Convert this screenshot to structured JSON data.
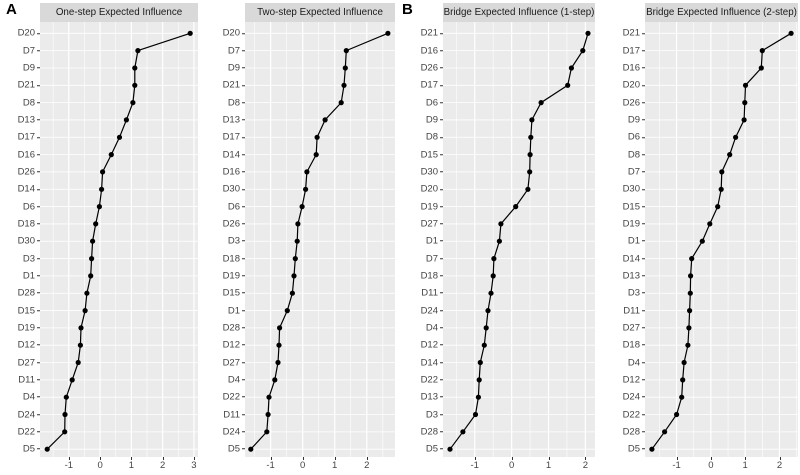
{
  "figure": {
    "panel_a_label": "A",
    "panel_b_label": "B"
  },
  "colors": {
    "panel_bg": "#EBEBEB",
    "strip_bg": "#D9D9D9",
    "grid": "#FFFFFF",
    "line": "#000000",
    "point": "#000000",
    "axis_text": "#444444"
  },
  "chart_data": [
    {
      "type": "line",
      "panel": "A",
      "title": "One-step Expected Influence",
      "xlabel": "",
      "ylabel": "",
      "legend": "none",
      "grid": "on",
      "orientation": "items listed top-to-bottom, sorted descending",
      "xlim": [
        -1.92,
        3.13
      ],
      "xticks": [
        -1,
        0,
        1,
        2,
        3
      ],
      "categories": [
        "D20",
        "D7",
        "D9",
        "D21",
        "D8",
        "D13",
        "D17",
        "D16",
        "D26",
        "D14",
        "D6",
        "D18",
        "D30",
        "D3",
        "D1",
        "D28",
        "D15",
        "D19",
        "D12",
        "D27",
        "D11",
        "D4",
        "D24",
        "D22",
        "D5"
      ],
      "values": [
        2.88,
        1.21,
        1.11,
        1.11,
        1.05,
        0.84,
        0.62,
        0.36,
        0.08,
        0.05,
        -0.02,
        -0.14,
        -0.24,
        -0.27,
        -0.3,
        -0.42,
        -0.48,
        -0.61,
        -0.63,
        -0.7,
        -0.89,
        -1.08,
        -1.12,
        -1.13,
        -1.69
      ]
    },
    {
      "type": "line",
      "panel": "A",
      "title": "Two-step Expected Influence",
      "xlabel": "",
      "ylabel": "",
      "legend": "none",
      "grid": "on",
      "orientation": "items listed top-to-bottom, sorted descending",
      "xlim": [
        -1.8,
        2.88
      ],
      "xticks": [
        -1,
        0,
        1,
        2
      ],
      "categories": [
        "D20",
        "D7",
        "D9",
        "D21",
        "D8",
        "D13",
        "D17",
        "D14",
        "D16",
        "D30",
        "D6",
        "D26",
        "D3",
        "D18",
        "D19",
        "D15",
        "D1",
        "D28",
        "D12",
        "D27",
        "D4",
        "D22",
        "D11",
        "D24",
        "D5"
      ],
      "values": [
        2.66,
        1.36,
        1.33,
        1.29,
        1.2,
        0.7,
        0.45,
        0.42,
        0.13,
        0.09,
        -0.02,
        -0.15,
        -0.17,
        -0.23,
        -0.27,
        -0.32,
        -0.48,
        -0.72,
        -0.74,
        -0.77,
        -0.87,
        -1.05,
        -1.08,
        -1.12,
        -1.62
      ]
    },
    {
      "type": "line",
      "panel": "B",
      "title": "Bridge Expected Influence (1-step)",
      "xlabel": "",
      "ylabel": "",
      "legend": "none",
      "grid": "on",
      "orientation": "items listed top-to-bottom, sorted descending",
      "xlim": [
        -1.86,
        2.26
      ],
      "xticks": [
        -1,
        0,
        1,
        2
      ],
      "categories": [
        "D21",
        "D16",
        "D26",
        "D17",
        "D6",
        "D9",
        "D8",
        "D15",
        "D30",
        "D20",
        "D19",
        "D27",
        "D1",
        "D7",
        "D18",
        "D11",
        "D24",
        "D4",
        "D12",
        "D14",
        "D22",
        "D13",
        "D3",
        "D28",
        "D5"
      ],
      "values": [
        2.07,
        1.93,
        1.62,
        1.52,
        0.8,
        0.55,
        0.52,
        0.5,
        0.49,
        0.44,
        0.11,
        -0.29,
        -0.33,
        -0.48,
        -0.5,
        -0.56,
        -0.64,
        -0.69,
        -0.74,
        -0.85,
        -0.88,
        -0.9,
        -0.98,
        -1.32,
        -1.67
      ]
    },
    {
      "type": "line",
      "panel": "B",
      "title": "Bridge Expected Influence (2-step)",
      "xlabel": "",
      "ylabel": "",
      "legend": "none",
      "grid": "on",
      "orientation": "items listed top-to-bottom, sorted descending",
      "xlim": [
        -1.92,
        2.54
      ],
      "xticks": [
        -1,
        0,
        1,
        2
      ],
      "categories": [
        "D21",
        "D17",
        "D16",
        "D20",
        "D26",
        "D9",
        "D6",
        "D8",
        "D7",
        "D30",
        "D15",
        "D19",
        "D1",
        "D14",
        "D13",
        "D3",
        "D11",
        "D27",
        "D18",
        "D4",
        "D12",
        "D24",
        "D22",
        "D28",
        "D5"
      ],
      "values": [
        2.34,
        1.5,
        1.47,
        1.01,
        0.99,
        0.97,
        0.72,
        0.55,
        0.32,
        0.3,
        0.2,
        -0.03,
        -0.25,
        -0.56,
        -0.59,
        -0.6,
        -0.62,
        -0.64,
        -0.67,
        -0.78,
        -0.82,
        -0.85,
        -1.0,
        -1.35,
        -1.72
      ]
    }
  ]
}
